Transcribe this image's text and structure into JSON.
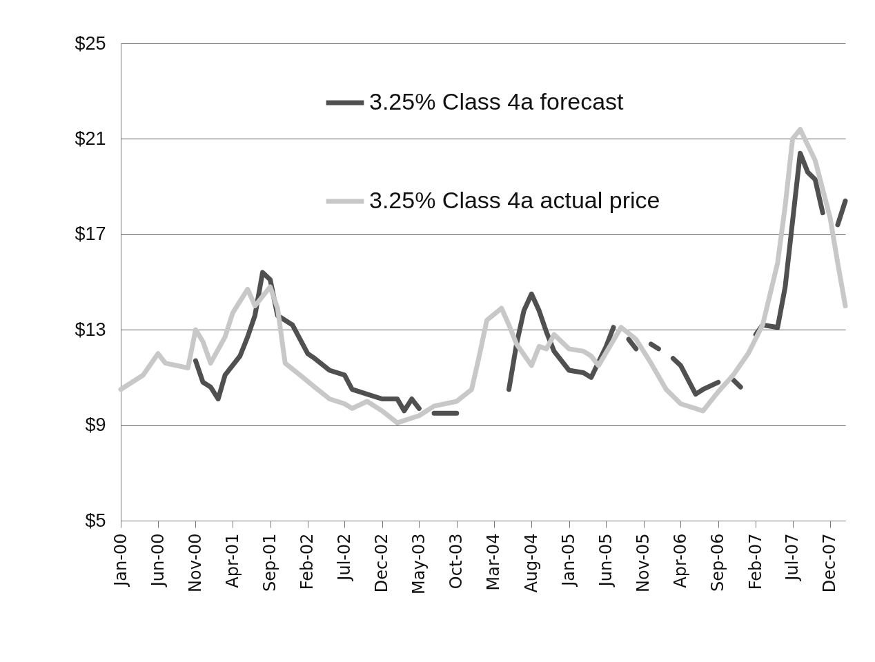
{
  "chart_data": {
    "type": "line",
    "xlim": [
      "2000-01",
      "2008-02"
    ],
    "xticks": [
      {
        "value": "2000-01",
        "label": "Jan-00"
      },
      {
        "value": "2000-06",
        "label": "Jun-00"
      },
      {
        "value": "2000-11",
        "label": "Nov-00"
      },
      {
        "value": "2001-04",
        "label": "Apr-01"
      },
      {
        "value": "2001-09",
        "label": "Sep-01"
      },
      {
        "value": "2002-02",
        "label": "Feb-02"
      },
      {
        "value": "2002-07",
        "label": "Jul-02"
      },
      {
        "value": "2002-12",
        "label": "Dec-02"
      },
      {
        "value": "2003-05",
        "label": "May-03"
      },
      {
        "value": "2003-10",
        "label": "Oct-03"
      },
      {
        "value": "2004-03",
        "label": "Mar-04"
      },
      {
        "value": "2004-08",
        "label": "Aug-04"
      },
      {
        "value": "2005-01",
        "label": "Jan-05"
      },
      {
        "value": "2005-06",
        "label": "Jun-05"
      },
      {
        "value": "2005-11",
        "label": "Nov-05"
      },
      {
        "value": "2006-04",
        "label": "Apr-06"
      },
      {
        "value": "2006-09",
        "label": "Sep-06"
      },
      {
        "value": "2007-02",
        "label": "Feb-07"
      },
      {
        "value": "2007-07",
        "label": "Jul-07"
      },
      {
        "value": "2007-12",
        "label": "Dec-07"
      }
    ],
    "ylim": [
      5,
      25
    ],
    "yticks": [
      {
        "value": 5,
        "label": "$5"
      },
      {
        "value": 9,
        "label": "$9"
      },
      {
        "value": 13,
        "label": "$13"
      },
      {
        "value": 17,
        "label": "$17"
      },
      {
        "value": 21,
        "label": "$21"
      },
      {
        "value": 25,
        "label": "$25"
      }
    ],
    "grid": "y",
    "legend": "top",
    "line_style": "solid",
    "marker": "none",
    "series": [
      {
        "name": "3.25% Class 4a forecast",
        "color": "#505050",
        "x": [
          "2000-11",
          "2000-12",
          "2001-01",
          "2001-02",
          "2001-03",
          "2001-05",
          "2001-06",
          "2001-07",
          "2001-08",
          "2001-09",
          "2001-10",
          "2001-12",
          "2002-02",
          "2002-03",
          "2002-05",
          "2002-07",
          "2002-08",
          "2002-10",
          "2002-12",
          "2003-02",
          "2003-03",
          "2003-04",
          "2003-05",
          "2003-06",
          "2003-07",
          "2003-10",
          "2003-11",
          "2004-05",
          "2004-06",
          "2004-07",
          "2004-08",
          "2004-09",
          "2004-10",
          "2004-11",
          "2005-01",
          "2005-03",
          "2005-04",
          "2005-06",
          "2005-07",
          "2005-08",
          "2005-09",
          "2005-10",
          "2005-11",
          "2005-12",
          "2006-01",
          "2006-02",
          "2006-03",
          "2006-04",
          "2006-06",
          "2006-07",
          "2006-09",
          "2006-10",
          "2006-11",
          "2006-12",
          "2007-01",
          "2007-02",
          "2007-03",
          "2007-05",
          "2007-06",
          "2007-08",
          "2007-09",
          "2007-10",
          "2007-11",
          "2007-12",
          "2008-01",
          "2008-02"
        ],
        "values": [
          11.7,
          10.8,
          10.6,
          10.1,
          11.1,
          11.9,
          12.7,
          13.6,
          15.4,
          15.1,
          13.6,
          13.2,
          12.0,
          11.8,
          11.3,
          11.1,
          10.5,
          10.3,
          10.1,
          10.1,
          9.6,
          10.1,
          9.7,
          null,
          9.5,
          9.5,
          null,
          10.5,
          12.4,
          13.8,
          14.5,
          13.8,
          12.9,
          12.1,
          11.3,
          11.2,
          11.0,
          12.3,
          13.1,
          null,
          12.6,
          12.2,
          null,
          12.4,
          12.2,
          null,
          11.8,
          11.5,
          10.3,
          10.5,
          10.8,
          null,
          10.9,
          10.6,
          null,
          12.8,
          13.2,
          13.1,
          14.8,
          20.4,
          19.6,
          19.3,
          17.9,
          null,
          17.4,
          18.4
        ]
      },
      {
        "name": "3.25% Class 4a actual price",
        "color": "#c8c8c8",
        "x": [
          "2000-01",
          "2000-04",
          "2000-06",
          "2000-07",
          "2000-10",
          "2000-11",
          "2000-12",
          "2001-01",
          "2001-03",
          "2001-04",
          "2001-06",
          "2001-07",
          "2001-09",
          "2001-10",
          "2001-11",
          "2002-01",
          "2002-03",
          "2002-05",
          "2002-07",
          "2002-08",
          "2002-10",
          "2002-12",
          "2003-02",
          "2003-05",
          "2003-07",
          "2003-10",
          "2003-12",
          "2004-01",
          "2004-02",
          "2004-04",
          "2004-05",
          "2004-06",
          "2004-08",
          "2004-09",
          "2004-10",
          "2004-11",
          "2005-01",
          "2005-03",
          "2005-04",
          "2005-05",
          "2005-08",
          "2005-10",
          "2005-12",
          "2006-02",
          "2006-04",
          "2006-07",
          "2006-09",
          "2006-11",
          "2007-01",
          "2007-03",
          "2007-05",
          "2007-06",
          "2007-07",
          "2007-08",
          "2007-10",
          "2007-12",
          "2008-01",
          "2008-02"
        ],
        "values": [
          10.5,
          11.1,
          12.0,
          11.6,
          11.4,
          13.0,
          12.5,
          11.6,
          12.7,
          13.7,
          14.7,
          14.0,
          14.8,
          13.9,
          11.6,
          11.1,
          10.6,
          10.1,
          9.9,
          9.7,
          10.0,
          9.6,
          9.1,
          9.4,
          9.8,
          10.0,
          10.5,
          11.9,
          13.4,
          13.9,
          13.2,
          12.4,
          11.5,
          12.3,
          12.2,
          12.8,
          12.2,
          12.1,
          11.9,
          11.5,
          13.1,
          12.6,
          11.6,
          10.5,
          9.9,
          9.6,
          10.4,
          11.1,
          12.0,
          13.2,
          15.8,
          18.2,
          21.0,
          21.4,
          20.1,
          17.7,
          15.8,
          14.0
        ]
      }
    ]
  }
}
